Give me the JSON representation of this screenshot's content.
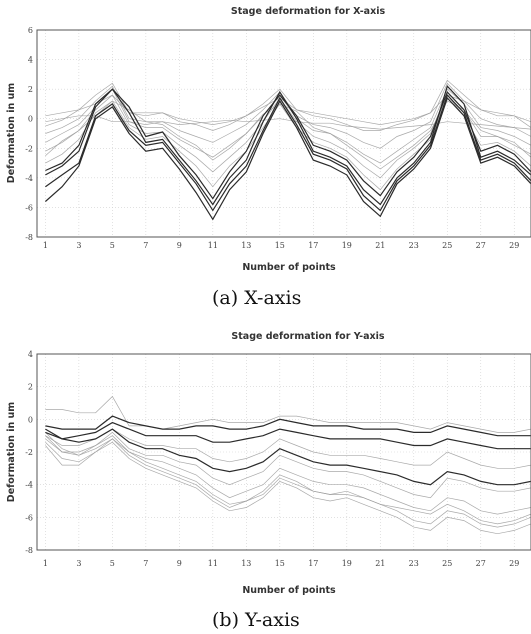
{
  "chart_data": [
    {
      "type": "line",
      "title": "Stage deformation for X-axis",
      "xlabel": "Number of points",
      "ylabel": "Deformation in um",
      "xlim": [
        0.5,
        30
      ],
      "ylim": [
        -8,
        6
      ],
      "x_ticks": [
        "1",
        "3",
        "5",
        "7",
        "9",
        "11",
        "13",
        "15",
        "17",
        "19",
        "21",
        "23",
        "25",
        "27",
        "29"
      ],
      "y_ticks": [
        "6",
        "4",
        "2",
        "0",
        "-2",
        "-4",
        "-6",
        "-8"
      ],
      "x": [
        1,
        2,
        3,
        4,
        5,
        6,
        7,
        8,
        9,
        10,
        11,
        12,
        13,
        14,
        15,
        16,
        17,
        18,
        19,
        20,
        21,
        22,
        23,
        24,
        25,
        26,
        27,
        28,
        29,
        30
      ],
      "series": [
        {
          "values": [
            -2.5,
            -1.5,
            -0.8,
            0.2,
            1.2,
            0.6,
            -0.2,
            -0.4,
            -1.2,
            -1.8,
            -2.8,
            -2.0,
            -1.0,
            0.3,
            1.0,
            0.5,
            -0.6,
            -1.0,
            -1.8,
            -2.6,
            -3.4,
            -2.6,
            -1.8,
            -0.8,
            1.2,
            0.6,
            -0.8,
            -1.2,
            -1.8,
            -2.4
          ]
        },
        {
          "values": [
            -3.8,
            -3.2,
            -2.2,
            0.8,
            2.0,
            0.8,
            -1.2,
            -0.9,
            -2.5,
            -3.8,
            -5.4,
            -3.6,
            -2.2,
            0.2,
            1.6,
            0.2,
            -1.8,
            -2.2,
            -2.8,
            -4.2,
            -5.2,
            -3.6,
            -2.6,
            -1.2,
            1.8,
            0.6,
            -2.2,
            -1.8,
            -2.4,
            -3.6
          ]
        },
        {
          "values": [
            -3.5,
            -3.0,
            -1.8,
            1.0,
            2.0,
            0.4,
            -1.6,
            -1.4,
            -2.8,
            -4.2,
            -5.8,
            -4.0,
            -2.8,
            -0.2,
            1.8,
            0.0,
            -2.2,
            -2.6,
            -3.2,
            -4.8,
            -5.8,
            -4.0,
            -3.0,
            -1.6,
            2.2,
            1.0,
            -2.6,
            -2.2,
            -2.8,
            -3.8
          ]
        },
        {
          "values": [
            -0.2,
            0.0,
            0.2,
            0.2,
            -0.2,
            -0.2,
            -0.4,
            -0.2,
            -0.4,
            -0.3,
            -0.2,
            -0.1,
            -0.2,
            -0.1,
            0.0,
            -0.2,
            -0.3,
            -0.3,
            -0.5,
            -0.6,
            -0.7,
            -0.6,
            -0.5,
            -0.4,
            -0.2,
            -0.3,
            -0.4,
            -0.5,
            -0.6,
            -0.7
          ]
        },
        {
          "values": [
            -0.5,
            -0.1,
            0.6,
            1.6,
            2.4,
            0.4,
            0.2,
            0.4,
            -0.2,
            -0.4,
            -0.8,
            -0.4,
            0.2,
            1.0,
            2.0,
            0.6,
            0.2,
            0.0,
            -0.4,
            -0.8,
            -0.8,
            -0.4,
            -0.1,
            0.4,
            2.6,
            1.6,
            0.6,
            0.2,
            0.2,
            -0.6
          ]
        },
        {
          "values": [
            -1.0,
            -0.6,
            0.0,
            1.2,
            2.2,
            0.0,
            -0.2,
            -0.2,
            -0.8,
            -1.2,
            -1.6,
            -1.0,
            -0.4,
            0.6,
            1.8,
            0.2,
            -0.4,
            -0.6,
            -1.0,
            -1.6,
            -2.0,
            -1.2,
            -0.8,
            -0.2,
            2.4,
            1.2,
            0.0,
            -0.4,
            -0.6,
            -1.2
          ]
        },
        {
          "values": [
            -1.6,
            -1.0,
            -0.4,
            0.8,
            2.0,
            -0.2,
            -0.6,
            -0.6,
            -1.4,
            -2.0,
            -2.6,
            -1.8,
            -1.0,
            0.2,
            1.6,
            0.0,
            -0.8,
            -1.0,
            -1.6,
            -2.4,
            -3.0,
            -2.2,
            -1.4,
            -0.6,
            2.0,
            1.0,
            -0.6,
            -0.8,
            -1.2,
            -1.8
          ]
        },
        {
          "values": [
            -2.2,
            -1.6,
            -0.8,
            0.6,
            1.6,
            -0.4,
            -1.0,
            -0.9,
            -1.8,
            -2.6,
            -3.6,
            -2.6,
            -1.6,
            -0.2,
            1.4,
            -0.2,
            -1.2,
            -1.6,
            -2.2,
            -3.2,
            -4.0,
            -2.8,
            -2.0,
            -1.0,
            1.8,
            0.6,
            -1.2,
            -1.2,
            -1.6,
            -2.6
          ]
        },
        {
          "values": [
            -3.0,
            -2.4,
            -1.4,
            0.4,
            1.2,
            -0.6,
            -1.4,
            -1.2,
            -2.2,
            -3.2,
            -4.6,
            -3.2,
            -2.2,
            -0.6,
            1.0,
            -0.6,
            -1.6,
            -2.0,
            -2.6,
            -3.8,
            -4.8,
            -3.4,
            -2.4,
            -1.4,
            1.6,
            0.2,
            -1.8,
            -1.6,
            -2.2,
            -3.2
          ]
        },
        {
          "values": [
            -4.6,
            -3.8,
            -3.0,
            0.2,
            1.0,
            -0.8,
            -1.8,
            -1.6,
            -3.0,
            -4.4,
            -6.2,
            -4.4,
            -3.2,
            -0.8,
            1.4,
            -0.4,
            -2.4,
            -2.8,
            -3.4,
            -5.2,
            -6.2,
            -4.2,
            -3.2,
            -1.8,
            1.6,
            0.4,
            -2.8,
            -2.4,
            -3.0,
            -4.2
          ]
        },
        {
          "values": [
            -5.6,
            -4.6,
            -3.2,
            0.0,
            0.8,
            -1.0,
            -2.2,
            -2.0,
            -3.4,
            -5.0,
            -6.8,
            -4.8,
            -3.6,
            -1.0,
            1.2,
            -0.6,
            -2.8,
            -3.2,
            -3.8,
            -5.6,
            -6.6,
            -4.4,
            -3.4,
            -2.0,
            1.4,
            0.2,
            -3.0,
            -2.6,
            -3.2,
            -4.4
          ]
        },
        {
          "values": [
            0.2,
            0.4,
            0.6,
            1.0,
            1.6,
            0.4,
            0.4,
            0.4,
            0.0,
            -0.2,
            -0.4,
            -0.2,
            0.2,
            0.8,
            1.4,
            0.6,
            0.4,
            0.2,
            0.0,
            -0.2,
            -0.4,
            -0.2,
            0.0,
            0.4,
            1.6,
            1.2,
            0.6,
            0.4,
            0.2,
            -0.2
          ]
        }
      ]
    },
    {
      "type": "line",
      "title": "Stage deformation for Y-axis",
      "xlabel": "Number of points",
      "ylabel": "Deformation in um",
      "xlim": [
        0.5,
        30
      ],
      "ylim": [
        -8,
        4
      ],
      "x_ticks": [
        "1",
        "3",
        "5",
        "7",
        "9",
        "11",
        "13",
        "15",
        "17",
        "19",
        "21",
        "23",
        "25",
        "27",
        "29"
      ],
      "y_ticks": [
        "4",
        "2",
        "0",
        "-2",
        "-4",
        "-6",
        "-8"
      ],
      "x": [
        1,
        2,
        3,
        4,
        5,
        6,
        7,
        8,
        9,
        10,
        11,
        12,
        13,
        14,
        15,
        16,
        17,
        18,
        19,
        20,
        21,
        22,
        23,
        24,
        25,
        26,
        27,
        28,
        29,
        30
      ],
      "series": [
        {
          "values": [
            0.6,
            0.6,
            0.4,
            0.4,
            1.4,
            -0.4,
            -0.4,
            -0.6,
            -0.4,
            -0.2,
            0.0,
            -0.2,
            -0.2,
            -0.2,
            0.2,
            0.2,
            0.0,
            -0.2,
            -0.2,
            -0.2,
            -0.2,
            -0.2,
            -0.4,
            -0.6,
            -0.2,
            -0.4,
            -0.6,
            -0.8,
            -0.8,
            -0.6
          ]
        },
        {
          "values": [
            -0.4,
            -0.6,
            -0.6,
            -0.6,
            0.2,
            -0.2,
            -0.4,
            -0.6,
            -0.6,
            -0.4,
            -0.4,
            -0.6,
            -0.6,
            -0.4,
            0.0,
            -0.2,
            -0.4,
            -0.4,
            -0.4,
            -0.6,
            -0.6,
            -0.6,
            -0.8,
            -0.8,
            -0.4,
            -0.6,
            -0.8,
            -1.0,
            -1.0,
            -1.0
          ]
        },
        {
          "values": [
            -0.8,
            -1.2,
            -1.0,
            -0.8,
            -0.2,
            -0.6,
            -1.0,
            -1.0,
            -1.0,
            -1.0,
            -1.4,
            -1.4,
            -1.2,
            -1.0,
            -0.6,
            -0.8,
            -1.0,
            -1.2,
            -1.2,
            -1.2,
            -1.2,
            -1.4,
            -1.6,
            -1.6,
            -1.2,
            -1.4,
            -1.6,
            -1.8,
            -1.8,
            -1.8
          ]
        },
        {
          "values": [
            -1.0,
            -1.6,
            -1.6,
            -1.2,
            -0.6,
            -1.2,
            -1.6,
            -1.6,
            -1.8,
            -1.8,
            -2.4,
            -2.6,
            -2.4,
            -2.0,
            -1.2,
            -1.6,
            -2.0,
            -2.2,
            -2.2,
            -2.2,
            -2.4,
            -2.6,
            -2.8,
            -2.8,
            -2.0,
            -2.4,
            -2.8,
            -3.0,
            -3.0,
            -2.8
          ]
        },
        {
          "values": [
            -1.2,
            -2.0,
            -2.2,
            -1.6,
            -0.8,
            -1.8,
            -2.2,
            -2.2,
            -2.6,
            -2.8,
            -3.6,
            -4.0,
            -3.6,
            -3.2,
            -2.2,
            -2.6,
            -3.0,
            -3.2,
            -3.2,
            -3.4,
            -3.8,
            -4.2,
            -4.6,
            -4.8,
            -3.6,
            -3.8,
            -4.2,
            -4.4,
            -4.4,
            -4.2
          ]
        },
        {
          "values": [
            -0.8,
            -1.8,
            -2.2,
            -1.8,
            -1.2,
            -2.0,
            -2.4,
            -2.6,
            -3.0,
            -3.4,
            -4.2,
            -4.8,
            -4.4,
            -4.0,
            -3.0,
            -3.4,
            -3.8,
            -4.0,
            -4.0,
            -4.2,
            -4.6,
            -5.0,
            -5.4,
            -5.6,
            -4.8,
            -5.0,
            -5.6,
            -5.8,
            -5.6,
            -5.4
          ]
        },
        {
          "values": [
            -1.4,
            -2.4,
            -2.6,
            -2.0,
            -1.2,
            -2.2,
            -2.8,
            -3.2,
            -3.6,
            -4.0,
            -4.8,
            -5.4,
            -5.0,
            -4.4,
            -3.4,
            -3.8,
            -4.4,
            -4.6,
            -4.4,
            -4.8,
            -5.2,
            -5.6,
            -6.2,
            -6.4,
            -5.6,
            -5.8,
            -6.4,
            -6.6,
            -6.4,
            -6.0
          ]
        },
        {
          "values": [
            -1.0,
            -2.0,
            -2.0,
            -1.6,
            -1.0,
            -2.0,
            -2.6,
            -3.0,
            -3.4,
            -3.8,
            -4.6,
            -5.2,
            -5.0,
            -4.6,
            -3.6,
            -4.0,
            -4.4,
            -4.6,
            -4.6,
            -4.8,
            -5.2,
            -5.4,
            -5.6,
            -5.8,
            -5.2,
            -5.6,
            -6.2,
            -6.4,
            -6.2,
            -5.8
          ]
        },
        {
          "values": [
            -1.6,
            -2.8,
            -2.8,
            -2.0,
            -1.4,
            -2.4,
            -3.0,
            -3.4,
            -3.8,
            -4.2,
            -5.0,
            -5.6,
            -5.4,
            -4.8,
            -3.8,
            -4.2,
            -4.8,
            -5.0,
            -4.8,
            -5.2,
            -5.6,
            -6.0,
            -6.6,
            -6.8,
            -6.0,
            -6.2,
            -6.8,
            -7.0,
            -6.8,
            -6.4
          ]
        },
        {
          "values": [
            -0.6,
            -1.2,
            -1.4,
            -1.2,
            -0.6,
            -1.4,
            -1.8,
            -1.8,
            -2.2,
            -2.4,
            -3.0,
            -3.2,
            -3.0,
            -2.6,
            -1.8,
            -2.2,
            -2.6,
            -2.8,
            -2.8,
            -3.0,
            -3.2,
            -3.4,
            -3.8,
            -4.0,
            -3.2,
            -3.4,
            -3.8,
            -4.0,
            -4.0,
            -3.8
          ]
        }
      ]
    }
  ],
  "captions": {
    "a": "(a)  X-axis",
    "b": "(b)  Y-axis"
  }
}
